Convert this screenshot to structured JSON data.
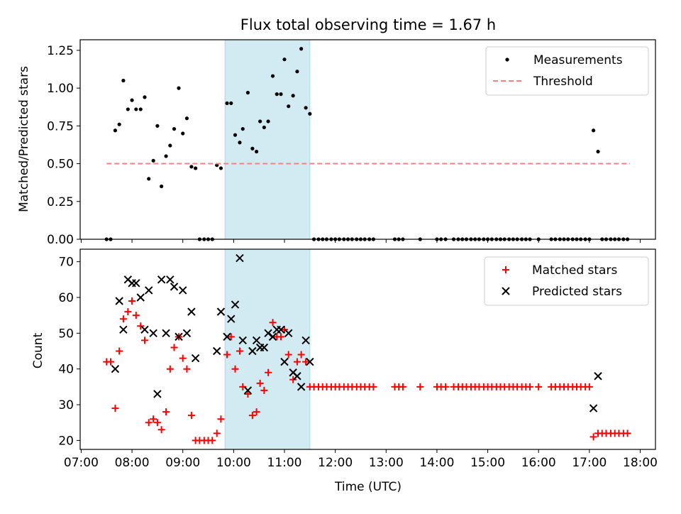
{
  "figure": {
    "title": "Flux total observing time = 1.67 h"
  },
  "chart_data": [
    {
      "type": "scatter",
      "ylabel": "Matched/Predicted stars",
      "xlim_hours": [
        6.98,
        18.3
      ],
      "ylim": [
        0,
        1.32
      ],
      "yticks": [
        "0.00",
        "0.25",
        "0.50",
        "0.75",
        "1.00",
        "1.25"
      ],
      "grid": false,
      "legend_position": "top-right",
      "shaded_span_hours": [
        9.83,
        11.5
      ],
      "shaded_color": "#add8e6",
      "series": [
        {
          "name": "Measurements",
          "kind": "points",
          "color": "#000000",
          "x": [
            7.5,
            7.58,
            7.67,
            7.75,
            7.83,
            7.92,
            8.0,
            8.08,
            8.17,
            8.25,
            8.33,
            8.42,
            8.5,
            8.58,
            8.67,
            8.75,
            8.83,
            8.92,
            9.0,
            9.08,
            9.17,
            9.25,
            9.33,
            9.42,
            9.5,
            9.58,
            9.67,
            9.75,
            9.87,
            9.95,
            10.03,
            10.12,
            10.18,
            10.28,
            10.37,
            10.45,
            10.52,
            10.6,
            10.68,
            10.77,
            10.85,
            10.93,
            11.0,
            11.08,
            11.17,
            11.25,
            11.33,
            11.42,
            11.5,
            11.58,
            11.67,
            11.75,
            11.83,
            11.92,
            12.0,
            12.08,
            12.17,
            12.25,
            12.33,
            12.42,
            12.5,
            12.58,
            12.67,
            12.75,
            13.17,
            13.25,
            13.33,
            13.67,
            14.0,
            14.08,
            14.17,
            14.33,
            14.42,
            14.5,
            14.58,
            14.67,
            14.75,
            14.83,
            14.92,
            15.0,
            15.08,
            15.17,
            15.25,
            15.33,
            15.42,
            15.5,
            15.58,
            15.67,
            15.75,
            15.83,
            16.0,
            16.25,
            16.33,
            16.42,
            16.5,
            16.58,
            16.67,
            16.75,
            16.83,
            16.92,
            17.0,
            17.08,
            17.17,
            17.25,
            17.33,
            17.42,
            17.5,
            17.58,
            17.67,
            17.75
          ],
          "y": [
            0,
            0,
            0.72,
            0.76,
            1.05,
            0.86,
            0.92,
            0.86,
            0.86,
            0.94,
            0.4,
            0.52,
            0.75,
            0.35,
            0.55,
            0.62,
            0.73,
            1.0,
            0.7,
            0.8,
            0.48,
            0.47,
            0,
            0,
            0,
            0,
            0.49,
            0.47,
            0.9,
            0.9,
            0.69,
            0.64,
            0.73,
            0.97,
            0.6,
            0.58,
            0.78,
            0.74,
            0.78,
            1.08,
            0.96,
            0.96,
            1.19,
            0.88,
            0.95,
            1.11,
            1.26,
            0.87,
            0.83,
            0,
            0,
            0,
            0,
            0,
            0,
            0,
            0,
            0,
            0,
            0,
            0,
            0,
            0,
            0,
            0,
            0,
            0,
            0,
            0,
            0,
            0,
            0,
            0,
            0,
            0,
            0,
            0,
            0,
            0,
            0,
            0,
            0,
            0,
            0,
            0,
            0,
            0,
            0,
            0,
            0,
            0,
            0,
            0,
            0,
            0,
            0,
            0,
            0,
            0,
            0,
            0,
            0.72,
            0.58,
            0,
            0,
            0,
            0,
            0,
            0,
            0
          ]
        },
        {
          "name": "Threshold",
          "kind": "dashed-line",
          "color": "#ff7f7f",
          "x": [
            7.5,
            17.8
          ],
          "y": [
            0.5,
            0.5
          ]
        }
      ]
    },
    {
      "type": "scatter",
      "xlabel": "Time (UTC)",
      "ylabel": "Count",
      "xlim_hours": [
        6.98,
        18.3
      ],
      "xticks": [
        "07:00",
        "08:00",
        "09:00",
        "10:00",
        "11:00",
        "12:00",
        "13:00",
        "14:00",
        "15:00",
        "16:00",
        "17:00",
        "18:00"
      ],
      "ylim": [
        17.5,
        73.5
      ],
      "yticks": [
        "20",
        "30",
        "40",
        "50",
        "60",
        "70"
      ],
      "grid": false,
      "legend_position": "top-right",
      "shaded_span_hours": [
        9.83,
        11.5
      ],
      "shaded_color": "#add8e6",
      "series": [
        {
          "name": "Matched stars",
          "marker": "+",
          "color": "#ff0000",
          "x": [
            7.5,
            7.58,
            7.67,
            7.75,
            7.83,
            7.92,
            8.0,
            8.08,
            8.17,
            8.25,
            8.33,
            8.42,
            8.5,
            8.58,
            8.67,
            8.75,
            8.83,
            8.92,
            9.0,
            9.08,
            9.17,
            9.25,
            9.33,
            9.42,
            9.5,
            9.58,
            9.67,
            9.75,
            9.87,
            9.95,
            10.03,
            10.12,
            10.18,
            10.28,
            10.37,
            10.45,
            10.52,
            10.6,
            10.68,
            10.77,
            10.85,
            10.93,
            11.0,
            11.08,
            11.17,
            11.25,
            11.33,
            11.42,
            11.5,
            11.58,
            11.67,
            11.75,
            11.83,
            11.92,
            12.0,
            12.08,
            12.17,
            12.25,
            12.33,
            12.42,
            12.5,
            12.58,
            12.67,
            12.75,
            13.17,
            13.25,
            13.33,
            13.67,
            14.0,
            14.08,
            14.17,
            14.33,
            14.42,
            14.5,
            14.58,
            14.67,
            14.75,
            14.83,
            14.92,
            15.0,
            15.08,
            15.17,
            15.25,
            15.33,
            15.42,
            15.5,
            15.58,
            15.67,
            15.75,
            15.83,
            16.0,
            16.25,
            16.33,
            16.42,
            16.5,
            16.58,
            16.67,
            16.75,
            16.83,
            16.92,
            17.0,
            17.08,
            17.17,
            17.25,
            17.33,
            17.42,
            17.5,
            17.58,
            17.67,
            17.75
          ],
          "y": [
            42,
            42,
            29,
            45,
            54,
            56,
            59,
            55,
            52,
            48,
            25,
            26,
            25,
            23,
            28,
            40,
            46,
            49,
            43,
            40,
            27,
            20,
            20,
            20,
            20,
            20,
            22,
            26,
            44,
            49,
            40,
            45,
            35,
            33,
            27,
            28,
            36,
            34,
            39,
            53,
            49,
            49,
            51,
            44,
            37,
            42,
            44,
            42,
            35,
            35,
            35,
            35,
            35,
            35,
            35,
            35,
            35,
            35,
            35,
            35,
            35,
            35,
            35,
            35,
            35,
            35,
            35,
            35,
            35,
            35,
            35,
            35,
            35,
            35,
            35,
            35,
            35,
            35,
            35,
            35,
            35,
            35,
            35,
            35,
            35,
            35,
            35,
            35,
            35,
            35,
            35,
            35,
            35,
            35,
            35,
            35,
            35,
            35,
            35,
            35,
            35,
            21,
            22,
            22,
            22,
            22,
            22,
            22,
            22,
            22
          ]
        },
        {
          "name": "Predicted stars",
          "marker": "x",
          "color": "#000000",
          "x": [
            7.67,
            7.75,
            7.83,
            7.92,
            8.0,
            8.08,
            8.17,
            8.25,
            8.33,
            8.42,
            8.5,
            8.58,
            8.67,
            8.75,
            8.83,
            8.92,
            9.0,
            9.08,
            9.17,
            9.25,
            9.67,
            9.75,
            9.87,
            9.95,
            10.03,
            10.12,
            10.18,
            10.28,
            10.37,
            10.45,
            10.52,
            10.6,
            10.68,
            10.77,
            10.85,
            10.93,
            11.0,
            11.08,
            11.17,
            11.25,
            11.33,
            11.42,
            11.5,
            17.08,
            17.17
          ],
          "y": [
            40,
            59,
            51,
            65,
            64,
            64,
            60,
            51,
            62,
            50,
            33,
            65,
            50,
            65,
            63,
            49,
            62,
            50,
            56,
            43,
            45,
            56,
            49,
            54,
            58,
            71,
            48,
            34,
            45,
            48,
            46,
            46,
            50,
            49,
            51,
            51,
            42,
            50,
            39,
            38,
            35,
            48,
            42,
            29,
            38
          ]
        }
      ]
    }
  ]
}
